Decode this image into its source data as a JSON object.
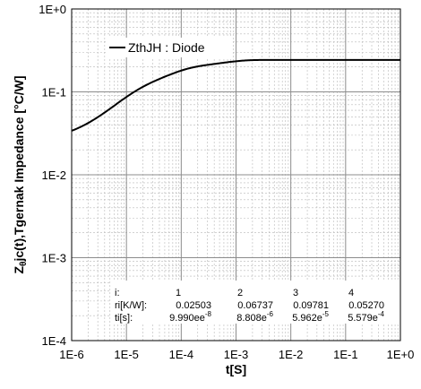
{
  "chart_data": {
    "type": "line",
    "x_scale": "log",
    "y_scale": "log",
    "xlim": [
      1e-06,
      1
    ],
    "ylim": [
      0.0001,
      1
    ],
    "grid": true,
    "xlabel": "t[S]",
    "ylabel": {
      "pre": "Z",
      "sub": "θ",
      "post": "jc(t),Tgernak Impedance [°C/W]"
    },
    "x_tick_labels": [
      "1E-6",
      "1E-5",
      "1E-4",
      "1E-3",
      "1E-2",
      "1E-1",
      "1E+0"
    ],
    "y_tick_labels": [
      "1E-4",
      "1E-3",
      "1E-2",
      "1E-1",
      "1E+0"
    ],
    "legend": {
      "position": "top-left",
      "label": "ZthJH : Diode"
    },
    "series": [
      {
        "name": "ZthJH : Diode",
        "color": "#000000",
        "model": "foster",
        "ri": [
          0.02503,
          0.06737,
          0.09781,
          0.0527
        ],
        "ti": [
          9.99e-08,
          8.808e-06,
          5.962e-05,
          0.0005579
        ]
      }
    ],
    "table": {
      "header_label": "i:",
      "indices": [
        "1",
        "2",
        "3",
        "4"
      ],
      "ri_label": "ri[K/W]:",
      "ri_values": [
        "0.02503",
        "0.06737",
        "0.09781",
        "0.05270"
      ],
      "ti_label": "ti[s]:",
      "ti_values": [
        {
          "mant": "9.990ee",
          "exp": "-8"
        },
        {
          "mant": "8.808e",
          "exp": "-6"
        },
        {
          "mant": "5.962e",
          "exp": "-5"
        },
        {
          "mant": "5.579e",
          "exp": "-4"
        }
      ]
    }
  }
}
